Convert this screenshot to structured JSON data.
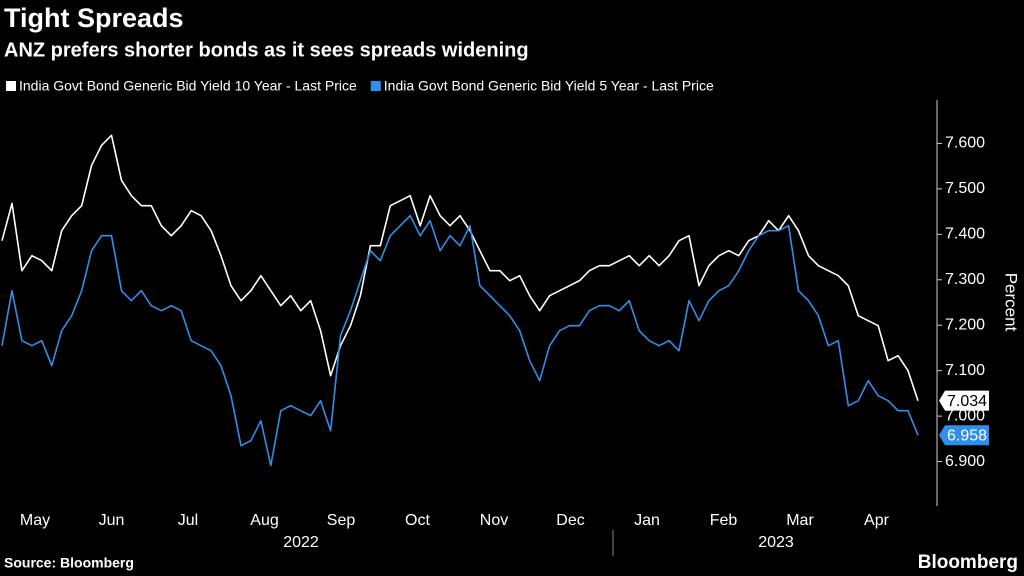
{
  "chart_data": {
    "type": "line",
    "title": "Tight Spreads",
    "subtitle": "ANZ prefers shorter bonds as it sees spreads widening",
    "source": "Source: Bloomberg",
    "brand": "Bloomberg",
    "y_label": "Percent",
    "months": [
      "May",
      "Jun",
      "Jul",
      "Aug",
      "Sep",
      "Oct",
      "Nov",
      "Dec",
      "Jan",
      "Feb",
      "Mar",
      "Apr"
    ],
    "years": [
      "2022",
      "2023"
    ],
    "ylim": [
      6.8,
      7.7
    ],
    "yticks": [
      {
        "value": 6.9,
        "label": "6.900"
      },
      {
        "value": 7.0,
        "label": "7.000"
      },
      {
        "value": 7.1,
        "label": "7.100"
      },
      {
        "value": 7.2,
        "label": "7.200"
      },
      {
        "value": 7.3,
        "label": "7.300"
      },
      {
        "value": 7.4,
        "label": "7.400"
      },
      {
        "value": 7.5,
        "label": "7.500"
      },
      {
        "value": 7.6,
        "label": "7.600"
      }
    ],
    "series": [
      {
        "name": "India Govt Bond Generic Bid Yield 10 Year - Last Price",
        "color": "#ffffff",
        "values": [
          7.386,
          7.468,
          7.32,
          7.353,
          7.342,
          7.32,
          7.408,
          7.441,
          7.463,
          7.552,
          7.596,
          7.618,
          7.519,
          7.485,
          7.463,
          7.463,
          7.419,
          7.397,
          7.419,
          7.452,
          7.441,
          7.408,
          7.353,
          7.287,
          7.254,
          7.276,
          7.309,
          7.276,
          7.243,
          7.265,
          7.232,
          7.254,
          7.188,
          7.089,
          7.155,
          7.199,
          7.265,
          7.375,
          7.375,
          7.463,
          7.474,
          7.485,
          7.419,
          7.485,
          7.441,
          7.419,
          7.441,
          7.408,
          7.364,
          7.32,
          7.32,
          7.298,
          7.309,
          7.265,
          7.232,
          7.265,
          7.276,
          7.287,
          7.298,
          7.32,
          7.331,
          7.331,
          7.342,
          7.353,
          7.331,
          7.353,
          7.331,
          7.353,
          7.386,
          7.397,
          7.287,
          7.331,
          7.353,
          7.364,
          7.353,
          7.386,
          7.397,
          7.43,
          7.408,
          7.441,
          7.408,
          7.353,
          7.331,
          7.32,
          7.309,
          7.287,
          7.221,
          7.21,
          7.199,
          7.122,
          7.133,
          7.1,
          7.034
        ]
      },
      {
        "name": "India Govt Bond Generic Bid Yield 5 Year - Last Price",
        "color": "#2f8fea",
        "values": [
          7.155,
          7.276,
          7.166,
          7.155,
          7.166,
          7.111,
          7.188,
          7.221,
          7.276,
          7.364,
          7.397,
          7.397,
          7.276,
          7.254,
          7.276,
          7.243,
          7.232,
          7.243,
          7.232,
          7.166,
          7.155,
          7.144,
          7.111,
          7.045,
          6.935,
          6.946,
          6.99,
          6.891,
          7.012,
          7.023,
          7.012,
          7.001,
          7.034,
          6.968,
          7.177,
          7.232,
          7.298,
          7.364,
          7.342,
          7.397,
          7.419,
          7.441,
          7.397,
          7.43,
          7.364,
          7.397,
          7.375,
          7.419,
          7.287,
          7.265,
          7.243,
          7.221,
          7.188,
          7.122,
          7.078,
          7.155,
          7.188,
          7.199,
          7.199,
          7.232,
          7.243,
          7.243,
          7.232,
          7.254,
          7.188,
          7.166,
          7.155,
          7.166,
          7.144,
          7.254,
          7.21,
          7.254,
          7.276,
          7.287,
          7.32,
          7.364,
          7.397,
          7.408,
          7.408,
          7.419,
          7.276,
          7.254,
          7.221,
          7.155,
          7.166,
          7.023,
          7.034,
          7.078,
          7.045,
          7.034,
          7.012,
          7.012,
          6.958
        ]
      }
    ]
  }
}
